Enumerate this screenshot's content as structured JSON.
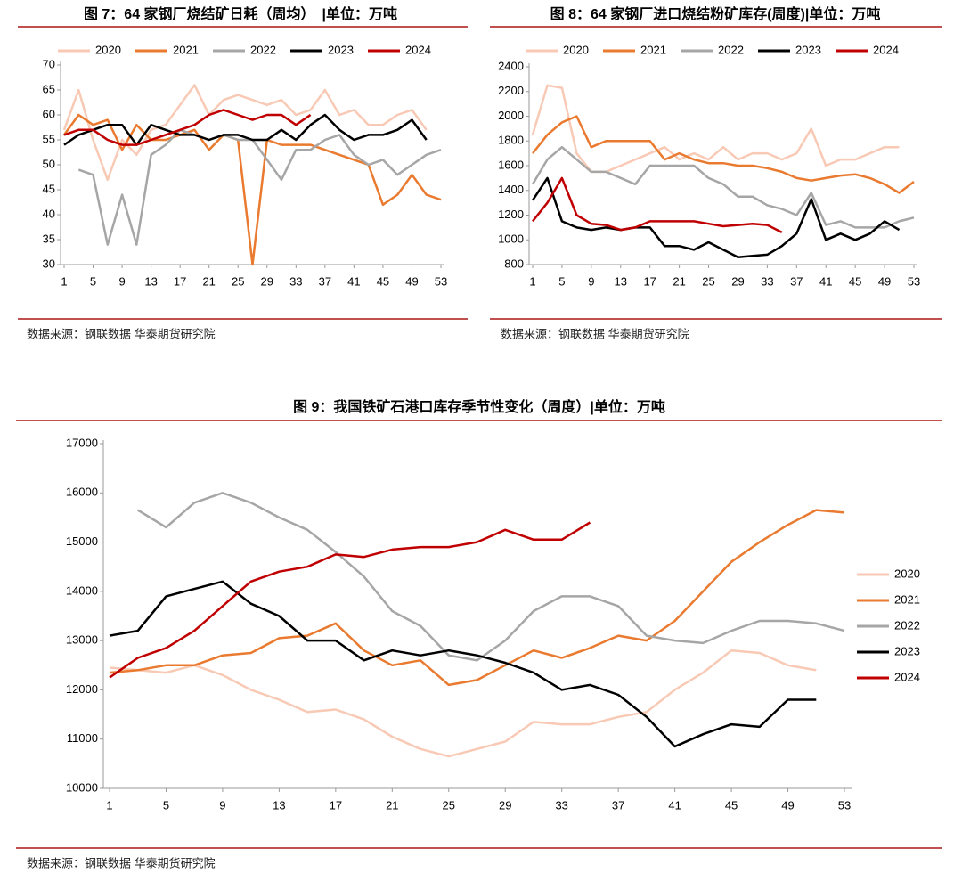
{
  "chart_data": [
    {
      "type": "line",
      "title": "图 7：64 家钢厂烧结矿日耗（周均）　|单位：万吨",
      "source": "数据来源：钢联数据 华泰期货研究院",
      "legend": "top",
      "x": [
        1,
        3,
        5,
        7,
        9,
        11,
        13,
        15,
        17,
        19,
        21,
        23,
        25,
        27,
        29,
        31,
        33,
        35,
        37,
        39,
        41,
        43,
        45,
        47,
        49,
        51,
        53
      ],
      "xlim": [
        1,
        53
      ],
      "xticks": [
        1,
        5,
        9,
        13,
        17,
        21,
        25,
        29,
        33,
        37,
        41,
        45,
        49,
        53
      ],
      "ylim": [
        30,
        70
      ],
      "yticks": [
        30,
        35,
        40,
        45,
        50,
        55,
        60,
        65,
        70
      ],
      "series": [
        {
          "name": "2020",
          "color": "#f8c9b4",
          "values": [
            57,
            65,
            55,
            47,
            55,
            52,
            57,
            58,
            62,
            66,
            60,
            63,
            64,
            63,
            62,
            63,
            60,
            61,
            65,
            60,
            61,
            58,
            58,
            60,
            61,
            57,
            null
          ]
        },
        {
          "name": "2021",
          "color": "#e97a2f",
          "values": [
            56,
            60,
            58,
            59,
            53,
            58,
            55,
            55,
            56,
            57,
            53,
            56,
            55,
            30,
            55,
            54,
            54,
            54,
            53,
            52,
            51,
            50,
            42,
            44,
            48,
            44,
            43
          ]
        },
        {
          "name": "2022",
          "color": "#a6a6a6",
          "values": [
            null,
            49,
            48,
            34,
            44,
            34,
            52,
            54,
            57,
            56,
            55,
            56,
            55,
            55,
            51,
            47,
            53,
            53,
            55,
            56,
            52,
            50,
            51,
            48,
            50,
            52,
            53
          ]
        },
        {
          "name": "2023",
          "color": "#000000",
          "values": [
            54,
            56,
            57,
            58,
            58,
            54,
            58,
            57,
            56,
            56,
            55,
            56,
            56,
            55,
            55,
            57,
            55,
            58,
            60,
            57,
            55,
            56,
            56,
            57,
            59,
            55,
            null
          ]
        },
        {
          "name": "2024",
          "color": "#c00000",
          "values": [
            56,
            57,
            57,
            55,
            54,
            54,
            55,
            56,
            57,
            58,
            60,
            61,
            60,
            59,
            60,
            60,
            58,
            60,
            null,
            null,
            null,
            null,
            null,
            null,
            null,
            null,
            null
          ]
        }
      ]
    },
    {
      "type": "line",
      "title": "图 8：64 家钢厂进口烧结粉矿库存(周度)|单位：万吨",
      "source": "数据来源：钢联数据 华泰期货研究院",
      "legend": "top",
      "x": [
        1,
        3,
        5,
        7,
        9,
        11,
        13,
        15,
        17,
        19,
        21,
        23,
        25,
        27,
        29,
        31,
        33,
        35,
        37,
        39,
        41,
        43,
        45,
        47,
        49,
        51,
        53
      ],
      "xlim": [
        1,
        53
      ],
      "xticks": [
        1,
        5,
        9,
        13,
        17,
        21,
        25,
        29,
        33,
        37,
        41,
        45,
        49,
        53
      ],
      "ylim": [
        800,
        2400
      ],
      "yticks": [
        800,
        1000,
        1200,
        1400,
        1600,
        1800,
        2000,
        2200,
        2400
      ],
      "series": [
        {
          "name": "2020",
          "color": "#f8c9b4",
          "values": [
            1850,
            2250,
            2230,
            1700,
            1550,
            1550,
            1600,
            1650,
            1700,
            1750,
            1650,
            1700,
            1650,
            1750,
            1650,
            1700,
            1700,
            1650,
            1700,
            1900,
            1600,
            1650,
            1650,
            1700,
            1750,
            1750,
            null
          ]
        },
        {
          "name": "2021",
          "color": "#e97a2f",
          "values": [
            1700,
            1850,
            1950,
            2000,
            1750,
            1800,
            1800,
            1800,
            1800,
            1650,
            1700,
            1650,
            1620,
            1620,
            1600,
            1600,
            1580,
            1550,
            1500,
            1480,
            1500,
            1520,
            1530,
            1500,
            1450,
            1380,
            1470
          ]
        },
        {
          "name": "2022",
          "color": "#a6a6a6",
          "values": [
            1450,
            1650,
            1750,
            1650,
            1550,
            1550,
            1500,
            1450,
            1600,
            1600,
            1600,
            1600,
            1500,
            1450,
            1350,
            1350,
            1280,
            1250,
            1200,
            1380,
            1120,
            1150,
            1100,
            1100,
            1100,
            1150,
            1180
          ]
        },
        {
          "name": "2023",
          "color": "#000000",
          "values": [
            1320,
            1500,
            1150,
            1100,
            1080,
            1100,
            1080,
            1100,
            1100,
            950,
            950,
            920,
            980,
            920,
            860,
            870,
            880,
            950,
            1050,
            1330,
            1000,
            1050,
            1000,
            1050,
            1150,
            1080,
            null
          ]
        },
        {
          "name": "2024",
          "color": "#c00000",
          "values": [
            1150,
            1300,
            1500,
            1200,
            1130,
            1120,
            1080,
            1100,
            1150,
            1150,
            1150,
            1150,
            1130,
            1110,
            1120,
            1130,
            1120,
            1060,
            null,
            null,
            null,
            null,
            null,
            null,
            null,
            null,
            null
          ]
        }
      ]
    },
    {
      "type": "line",
      "title": "图 9：我国铁矿石港口库存季节性变化（周度）|单位：万吨",
      "source": "数据来源：钢联数据 华泰期货研究院",
      "legend": "right",
      "x": [
        1,
        3,
        5,
        7,
        9,
        11,
        13,
        15,
        17,
        19,
        21,
        23,
        25,
        27,
        29,
        31,
        33,
        35,
        37,
        39,
        41,
        43,
        45,
        47,
        49,
        51,
        53
      ],
      "xlim": [
        1,
        53
      ],
      "xticks": [
        1,
        5,
        9,
        13,
        17,
        21,
        25,
        29,
        33,
        37,
        41,
        45,
        49,
        53
      ],
      "ylim": [
        10000,
        17000
      ],
      "yticks": [
        10000,
        11000,
        12000,
        13000,
        14000,
        15000,
        16000,
        17000
      ],
      "series": [
        {
          "name": "2020",
          "color": "#f8c9b4",
          "values": [
            12450,
            12400,
            12350,
            12500,
            12300,
            12000,
            11800,
            11550,
            11600,
            11400,
            11050,
            10800,
            10650,
            10800,
            10950,
            11350,
            11300,
            11300,
            11450,
            11550,
            12000,
            12350,
            12800,
            12750,
            12500,
            12400,
            null
          ]
        },
        {
          "name": "2021",
          "color": "#e97a2f",
          "values": [
            12350,
            12400,
            12500,
            12500,
            12700,
            12750,
            13050,
            13100,
            13350,
            12800,
            12500,
            12600,
            12100,
            12200,
            12500,
            12800,
            12650,
            12850,
            13100,
            13000,
            13400,
            14000,
            14600,
            15000,
            15350,
            15650,
            15600
          ]
        },
        {
          "name": "2022",
          "color": "#a6a6a6",
          "values": [
            null,
            15650,
            15300,
            15800,
            16000,
            15800,
            15500,
            15250,
            14800,
            14300,
            13600,
            13300,
            12700,
            12600,
            13000,
            13600,
            13900,
            13900,
            13700,
            13100,
            13000,
            12950,
            13200,
            13400,
            13400,
            13350,
            13200
          ]
        },
        {
          "name": "2023",
          "color": "#000000",
          "values": [
            13100,
            13200,
            13900,
            14050,
            14200,
            13750,
            13500,
            13000,
            13000,
            12600,
            12800,
            12700,
            12800,
            12700,
            12550,
            12350,
            12000,
            12100,
            11900,
            11450,
            10850,
            11100,
            11300,
            11250,
            11800,
            11800,
            null
          ]
        },
        {
          "name": "2024",
          "color": "#c00000",
          "values": [
            12250,
            12650,
            12850,
            13200,
            13700,
            14200,
            14400,
            14500,
            14750,
            14700,
            14850,
            14900,
            14900,
            15000,
            15250,
            15050,
            15050,
            15400,
            null,
            null,
            null,
            null,
            null,
            null,
            null,
            null,
            null
          ]
        }
      ]
    }
  ]
}
